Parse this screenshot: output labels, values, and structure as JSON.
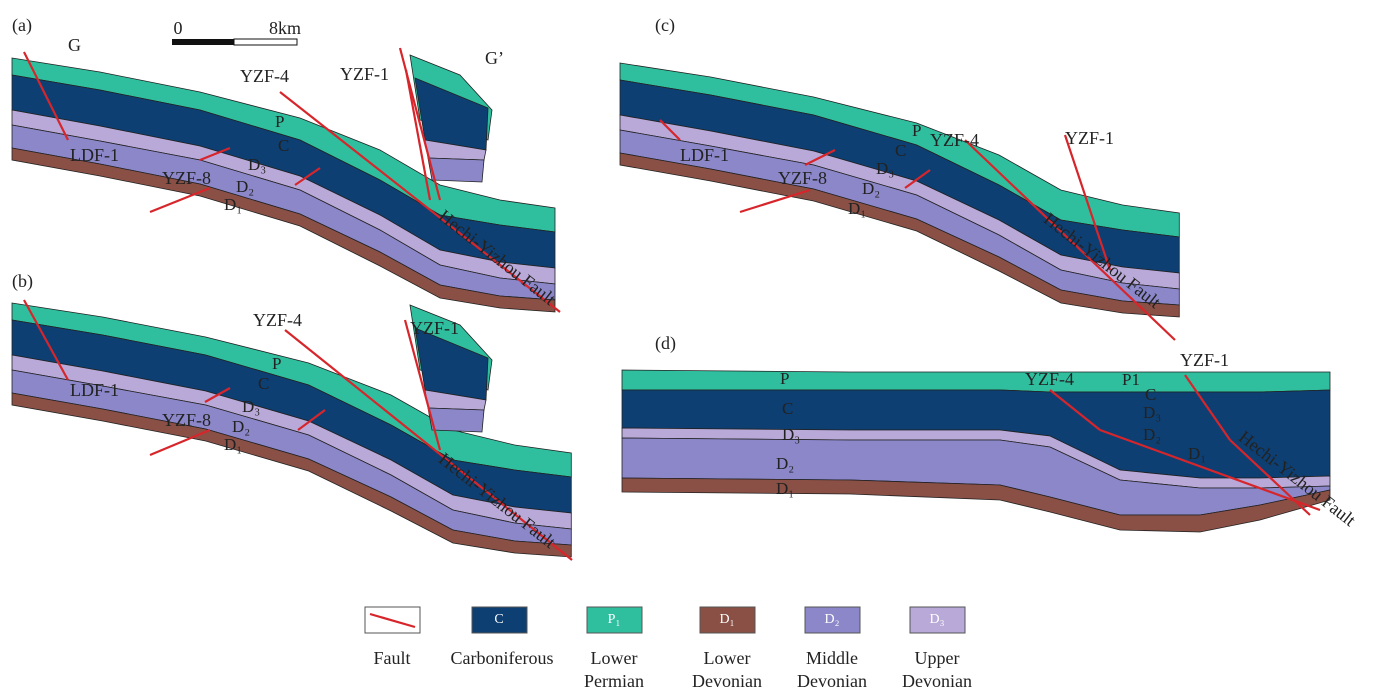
{
  "scale_bar": {
    "start": "0",
    "end": "8km"
  },
  "section": {
    "left": "G",
    "right": "G’"
  },
  "panels": [
    {
      "label": "(a)",
      "faults": [
        "YZF-4",
        "YZF-1",
        "LDF-1",
        "YZF-8",
        "Hechi-Yizhou Fault"
      ],
      "units": [
        "P",
        "C",
        "D₃",
        "D₂",
        "D₁"
      ]
    },
    {
      "label": "(b)",
      "faults": [
        "YZF-4",
        "YZF-1",
        "LDF-1",
        "YZF-8",
        "Hechi-Yizhou Fault"
      ],
      "units": [
        "P",
        "C",
        "D₃",
        "D₂",
        "D₁"
      ]
    },
    {
      "label": "(c)",
      "faults": [
        "YZF-4",
        "YZF-1",
        "LDF-1",
        "YZF-8",
        "Hechi-Yizhou Fault"
      ],
      "units": [
        "P",
        "C",
        "D₃",
        "D₂",
        "D₁"
      ]
    },
    {
      "label": "(d)",
      "faults": [
        "YZF-4",
        "YZF-1",
        "Hechi-Yizhou Fault"
      ],
      "units": [
        "P",
        "C",
        "D₃",
        "D₂",
        "D₁",
        "P1",
        "C",
        "D₃",
        "D₂",
        "D₁"
      ]
    }
  ],
  "legend": [
    {
      "label": [
        "Fault"
      ]
    },
    {
      "key": "C",
      "label": [
        "Carboniferous"
      ]
    },
    {
      "key": "P₁",
      "label": [
        "Lower",
        "Permian"
      ]
    },
    {
      "key": "D₁",
      "label": [
        "Lower",
        "Devonian"
      ]
    },
    {
      "key": "D₂",
      "label": [
        "Middle",
        "Devonian"
      ]
    },
    {
      "key": "D₃",
      "label": [
        "Upper",
        "Devonian"
      ]
    }
  ]
}
